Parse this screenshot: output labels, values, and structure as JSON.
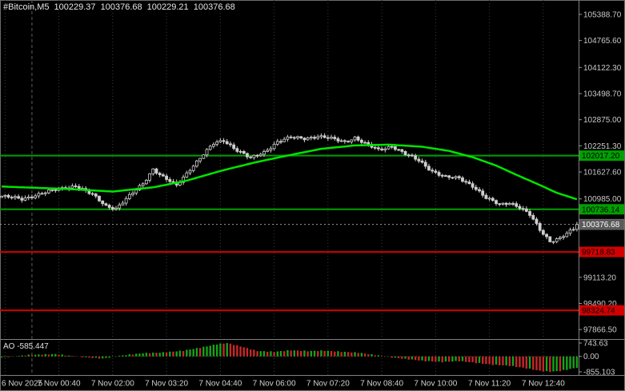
{
  "window": {
    "background": "#000000"
  },
  "header": {
    "symbol_period": "#Bitcoin,M5",
    "open": "100229.37",
    "high": "100376.68",
    "low": "100229.21",
    "close": "100376.68"
  },
  "chart_data": {
    "type": "candlestick",
    "title": "#Bitcoin,M5",
    "symbol": "#Bitcoin",
    "timeframe": "M5",
    "bars_total": 172,
    "first_label_bar": 1,
    "bars_per_label": 16,
    "midnight_bar": 9,
    "candle_color": "#CFCFCF",
    "ma_color": "#00E400",
    "grid_color": "#3C3C3C",
    "x_labels": [
      "6 Nov 2025",
      "7 Nov 00:40",
      "7 Nov 02:00",
      "7 Nov 03:20",
      "7 Nov 04:40",
      "7 Nov 06:00",
      "7 Nov 07:20",
      "7 Nov 08:40",
      "7 Nov 10:00",
      "7 Nov 11:20",
      "7 Nov 12:40"
    ],
    "price_axis": {
      "price_top": 105732,
      "price_bottom": 97640,
      "labels": [
        "105388.70",
        "104765.60",
        "104122.30",
        "103498.70",
        "102875.00",
        "102251.30",
        "101627.60",
        "100985.00",
        "99113.20",
        "98490.20",
        "97866.50"
      ]
    },
    "levels": [
      {
        "price": 102017.2,
        "label": "102017.20",
        "color": "#00A000",
        "role": "resistance"
      },
      {
        "price": 100736.14,
        "label": "100736.14",
        "color": "#00A000",
        "role": "support"
      },
      {
        "price": 99718.83,
        "label": "99718.83",
        "color": "#D40000",
        "role": "support"
      },
      {
        "price": 98324.74,
        "label": "98324.74",
        "color": "#D40000",
        "role": "support"
      }
    ],
    "current_price": {
      "value": 100376.68,
      "label": "100376.68",
      "badge_color": "#5A5A5A"
    },
    "close_anchors": [
      [
        0,
        101050
      ],
      [
        6,
        100980
      ],
      [
        12,
        101120
      ],
      [
        17,
        101220
      ],
      [
        22,
        101300
      ],
      [
        27,
        101080
      ],
      [
        31,
        100820
      ],
      [
        34,
        100760
      ],
      [
        38,
        101050
      ],
      [
        42,
        101350
      ],
      [
        45,
        101700
      ],
      [
        48,
        101500
      ],
      [
        52,
        101300
      ],
      [
        56,
        101700
      ],
      [
        60,
        102050
      ],
      [
        63,
        102300
      ],
      [
        66,
        102380
      ],
      [
        70,
        102150
      ],
      [
        74,
        101950
      ],
      [
        78,
        102100
      ],
      [
        82,
        102350
      ],
      [
        86,
        102450
      ],
      [
        90,
        102430
      ],
      [
        94,
        102480
      ],
      [
        98,
        102420
      ],
      [
        102,
        102350
      ],
      [
        105,
        102450
      ],
      [
        108,
        102300
      ],
      [
        112,
        102150
      ],
      [
        116,
        102250
      ],
      [
        120,
        102050
      ],
      [
        124,
        101900
      ],
      [
        128,
        101650
      ],
      [
        132,
        101500
      ],
      [
        136,
        101480
      ],
      [
        140,
        101300
      ],
      [
        144,
        101000
      ],
      [
        148,
        100850
      ],
      [
        151,
        100900
      ],
      [
        154,
        100780
      ],
      [
        157,
        100600
      ],
      [
        160,
        100250
      ],
      [
        163,
        99980
      ],
      [
        166,
        100050
      ],
      [
        169,
        100200
      ],
      [
        172,
        100376.68
      ]
    ],
    "ma_anchors": [
      [
        0,
        101280
      ],
      [
        20,
        101220
      ],
      [
        33,
        101160
      ],
      [
        45,
        101260
      ],
      [
        55,
        101420
      ],
      [
        65,
        101650
      ],
      [
        75,
        101850
      ],
      [
        85,
        102020
      ],
      [
        95,
        102180
      ],
      [
        105,
        102260
      ],
      [
        115,
        102280
      ],
      [
        125,
        102230
      ],
      [
        133,
        102130
      ],
      [
        140,
        101980
      ],
      [
        147,
        101780
      ],
      [
        153,
        101560
      ],
      [
        159,
        101350
      ],
      [
        165,
        101130
      ],
      [
        172,
        100950
      ]
    ],
    "ao_indicator": {
      "name": "AO",
      "current_value": "-585.447",
      "axis_labels": [
        "743.63",
        "0.00",
        "-855.103"
      ],
      "max": 743.63,
      "min": -855.103,
      "colors": {
        "up": "#17A317",
        "down": "#C62828"
      },
      "anchors": [
        [
          0,
          -60
        ],
        [
          8,
          80
        ],
        [
          16,
          130
        ],
        [
          24,
          -40
        ],
        [
          30,
          -120
        ],
        [
          36,
          60
        ],
        [
          42,
          180
        ],
        [
          48,
          220
        ],
        [
          54,
          320
        ],
        [
          60,
          520
        ],
        [
          64,
          680
        ],
        [
          67,
          743
        ],
        [
          71,
          560
        ],
        [
          76,
          300
        ],
        [
          81,
          260
        ],
        [
          86,
          340
        ],
        [
          91,
          300
        ],
        [
          96,
          320
        ],
        [
          101,
          260
        ],
        [
          106,
          210
        ],
        [
          111,
          80
        ],
        [
          116,
          -60
        ],
        [
          121,
          -160
        ],
        [
          126,
          -260
        ],
        [
          131,
          -310
        ],
        [
          136,
          -260
        ],
        [
          141,
          -360
        ],
        [
          146,
          -460
        ],
        [
          151,
          -520
        ],
        [
          156,
          -660
        ],
        [
          160,
          -800
        ],
        [
          163,
          -855
        ],
        [
          166,
          -810
        ],
        [
          169,
          -700
        ],
        [
          172,
          -585.447
        ]
      ]
    }
  },
  "time_axis": {
    "labels": [
      "6 Nov 2025",
      "7 Nov 00:40",
      "7 Nov 02:00",
      "7 Nov 03:20",
      "7 Nov 04:40",
      "7 Nov 06:00",
      "7 Nov 07:20",
      "7 Nov 08:40",
      "7 Nov 10:00",
      "7 Nov 11:20",
      "7 Nov 12:40"
    ]
  }
}
